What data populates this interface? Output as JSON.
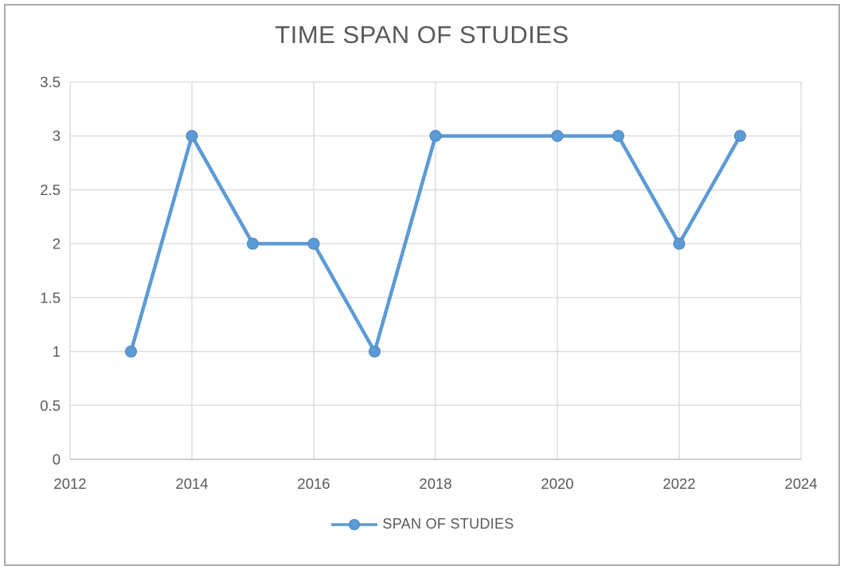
{
  "chart": {
    "title": "TIME SPAN OF STUDIES",
    "legend_label": "SPAN OF STUDIES",
    "colors": {
      "line": "#5b9bd5",
      "marker_fill": "#5b9bd5",
      "marker_edge": "#4a86c2",
      "gridline": "#d9d9d9",
      "axis_line": "#bfbfbf",
      "text": "#595959",
      "frame_border": "#ababab",
      "background": "#ffffff"
    }
  },
  "chart_data": {
    "type": "line",
    "title": "TIME SPAN OF STUDIES",
    "series": [
      {
        "name": "SPAN OF STUDIES",
        "x": [
          2013,
          2014,
          2015,
          2016,
          2017,
          2018,
          2020,
          2021,
          2022,
          2023
        ],
        "y": [
          1,
          3,
          2,
          2,
          1,
          3,
          3,
          3,
          2,
          3
        ]
      }
    ],
    "xlabel": "",
    "ylabel": "",
    "xlim": [
      2012,
      2024
    ],
    "ylim": [
      0,
      3.5
    ],
    "x_ticks": [
      2012,
      2014,
      2016,
      2018,
      2020,
      2022,
      2024
    ],
    "y_ticks": [
      0,
      0.5,
      1,
      1.5,
      2,
      2.5,
      3,
      3.5
    ],
    "grid": true,
    "markers": true,
    "legend_position": "bottom"
  }
}
